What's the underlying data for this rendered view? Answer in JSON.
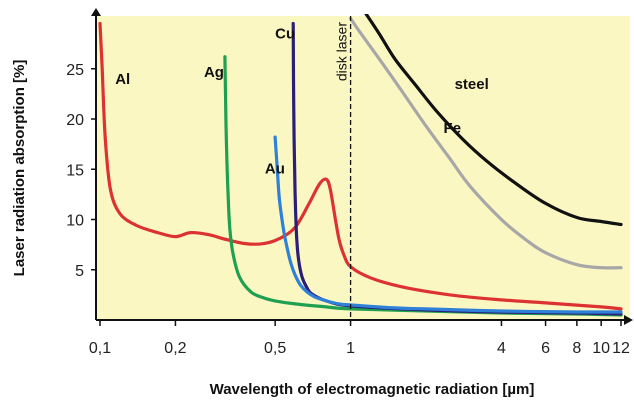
{
  "chart_data": {
    "type": "line",
    "title": "",
    "xlabel": "Wavelength of electromagnetic radiation [µm]",
    "ylabel": "Laser radiation absorption [%]",
    "x_scale": "log",
    "xlim": [
      0.1,
      12
    ],
    "ylim": [
      0,
      30
    ],
    "x_ticks": [
      {
        "value": 0.1,
        "label": "0,1"
      },
      {
        "value": 0.2,
        "label": "0,2"
      },
      {
        "value": 0.5,
        "label": "0,5"
      },
      {
        "value": 1,
        "label": "1"
      },
      {
        "value": 4,
        "label": "4"
      },
      {
        "value": 6,
        "label": "6"
      },
      {
        "value": 8,
        "label": "8"
      },
      {
        "value": 10,
        "label": "10"
      },
      {
        "value": 12,
        "label": "12"
      }
    ],
    "y_ticks": [
      {
        "value": 5,
        "label": "5"
      },
      {
        "value": 10,
        "label": "10"
      },
      {
        "value": 15,
        "label": "15"
      },
      {
        "value": 20,
        "label": "20"
      },
      {
        "value": 25,
        "label": "25"
      }
    ],
    "background_color": "#fbf7c3",
    "annotation": {
      "x": 1.0,
      "label": "disk laser",
      "style": "dashed"
    },
    "series": [
      {
        "name": "Al",
        "color": "#dc3232",
        "x": [
          0.1,
          0.102,
          0.105,
          0.11,
          0.12,
          0.14,
          0.17,
          0.2,
          0.23,
          0.27,
          0.32,
          0.38,
          0.45,
          0.52,
          0.6,
          0.68,
          0.75,
          0.8,
          0.83,
          0.87,
          0.9,
          0.94,
          1.0,
          1.2,
          1.6,
          2.5,
          4,
          6,
          10,
          12
        ],
        "y": [
          29.5,
          25,
          18,
          13,
          10.6,
          9.4,
          8.7,
          8.3,
          8.7,
          8.5,
          8.0,
          7.6,
          7.6,
          8.1,
          9.2,
          11.5,
          13.5,
          14.0,
          13.0,
          10.0,
          8.0,
          6.5,
          5.3,
          4.2,
          3.3,
          2.5,
          2.0,
          1.7,
          1.3,
          1.1
        ]
      },
      {
        "name": "Ag",
        "color": "#1fa050",
        "x": [
          0.315,
          0.317,
          0.32,
          0.325,
          0.33,
          0.34,
          0.36,
          0.4,
          0.45,
          0.5,
          0.6,
          0.8,
          1.0,
          2,
          4,
          8,
          12
        ],
        "y": [
          26.2,
          22,
          17,
          12,
          9,
          6.5,
          4.3,
          2.8,
          2.2,
          1.9,
          1.6,
          1.3,
          1.1,
          0.9,
          0.7,
          0.6,
          0.5
        ]
      },
      {
        "name": "Cu",
        "color": "#2b1f78",
        "x": [
          0.59,
          0.592,
          0.595,
          0.6,
          0.605,
          0.61,
          0.62,
          0.64,
          0.67,
          0.7,
          0.8,
          1.0,
          2,
          4,
          8,
          12
        ],
        "y": [
          29.5,
          24,
          18,
          13,
          10,
          8,
          6,
          4.3,
          3.2,
          2.6,
          1.9,
          1.4,
          1.0,
          0.8,
          0.7,
          0.6
        ]
      },
      {
        "name": "Au",
        "color": "#2f80d8",
        "x": [
          0.5,
          0.51,
          0.52,
          0.54,
          0.56,
          0.58,
          0.6,
          0.63,
          0.67,
          0.72,
          0.8,
          0.9,
          1.0,
          1.5,
          2,
          4,
          8,
          12
        ],
        "y": [
          18.2,
          15,
          12,
          9,
          7,
          5.5,
          4.5,
          3.5,
          2.8,
          2.3,
          1.9,
          1.6,
          1.5,
          1.2,
          1.1,
          0.9,
          0.8,
          0.8
        ]
      },
      {
        "name": "steel",
        "color": "#111111",
        "x": [
          1.15,
          1.3,
          1.5,
          1.8,
          2.2,
          2.8,
          3.5,
          4.5,
          6,
          8,
          10,
          12
        ],
        "y": [
          30.5,
          28.5,
          26,
          23.5,
          20.8,
          18,
          15.8,
          13.7,
          11.6,
          10.2,
          9.8,
          9.5
        ]
      },
      {
        "name": "Fe",
        "color": "#a7a7a7",
        "x": [
          1.0,
          1.1,
          1.3,
          1.6,
          2.0,
          2.5,
          3,
          4,
          5,
          6,
          8,
          10,
          12
        ],
        "y": [
          30,
          28.5,
          26,
          22.8,
          19.3,
          16,
          13.3,
          10,
          8,
          6.7,
          5.5,
          5.2,
          5.2
        ]
      }
    ],
    "series_label_positions": [
      {
        "name": "Al",
        "x": 0.115,
        "y": 23.5
      },
      {
        "name": "Ag",
        "x": 0.26,
        "y": 24.2
      },
      {
        "name": "Cu",
        "x": 0.5,
        "y": 28.0
      },
      {
        "name": "Au",
        "x": 0.455,
        "y": 14.6
      },
      {
        "name": "steel",
        "x": 2.6,
        "y": 23.0
      },
      {
        "name": "Fe",
        "x": 2.35,
        "y": 18.6
      }
    ]
  }
}
